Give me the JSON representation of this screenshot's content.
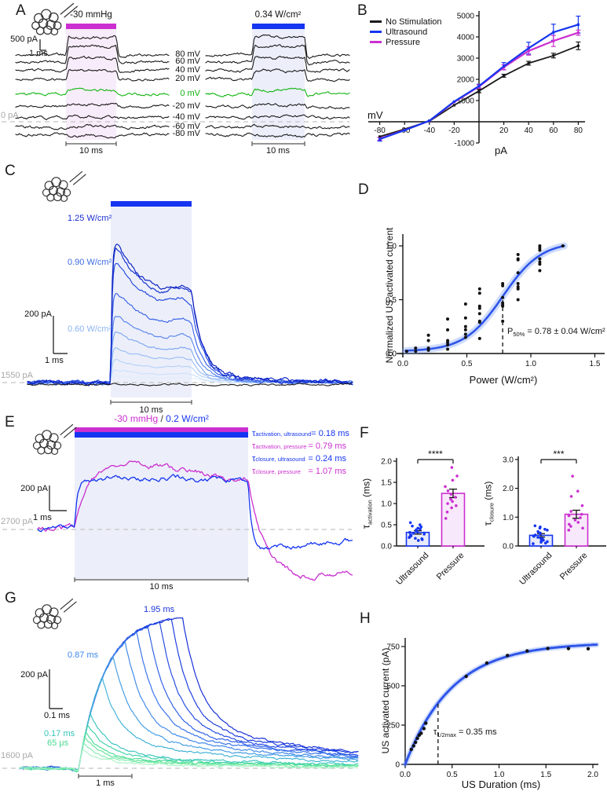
{
  "colors": {
    "blue": "#1635f0",
    "magenta": "#cb2fd0",
    "green": "#11b511",
    "black": "#1a1a1a",
    "gray_label": "#a8a8a8",
    "dash_line": "#c4c4c4",
    "shade_pressure": "#f7ecf9",
    "shade_ultrasound": "#eceffa",
    "fit_blue": "#2f55e8",
    "band_blue": "rgba(110,150,245,0.33)"
  },
  "panels": {
    "A": {
      "letter": "A",
      "left_stim_label": "-30 mmHg",
      "right_stim_label": "0.34 W/cm²",
      "voltage_labels": [
        "80 mV",
        "60 mV",
        "40 mV",
        "20 mV",
        "0 mV",
        "-20 mV",
        "-40 mV",
        "-60 mV",
        "-80 mV"
      ],
      "scale_current": "500 pA",
      "scale_time": "1 ms",
      "baseline_label": "0 pA",
      "time_label_left": "10 ms",
      "time_label_right": "10 ms"
    },
    "B": {
      "letter": "B",
      "x_axis_label": "mV",
      "y_axis_label": "pA"
    },
    "C": {
      "letter": "C",
      "power_labels": [
        {
          "text": "1.25 W/cm²",
          "color": "#1a2fd0"
        },
        {
          "text": "0.90 W/cm²",
          "color": "#3f6ae4"
        },
        {
          "text": "0.60 W/cm²",
          "color": "#8ab4f2"
        }
      ],
      "scale_current": "200 pA",
      "scale_time": "1 ms",
      "baseline_label": "1550 pA",
      "time_label": "10 ms"
    },
    "D": {
      "letter": "D",
      "y_axis_label": "Normalized US activated current",
      "x_axis_label": "Power (W/cm²)",
      "annotation": {
        "sym": "P",
        "sub": "50%",
        "val": " = 0.78 ± 0.04 W/cm²"
      }
    },
    "E": {
      "letter": "E",
      "title": {
        "pressure": "-30 mmHg",
        "sep": " / ",
        "ultrasound": "0.2 W/cm²"
      },
      "tau_annotations": [
        {
          "sym": "τ",
          "sub": "activation, ultrasound",
          "val": "= 0.18 ms",
          "color": "#1635f0"
        },
        {
          "sym": "τ",
          "sub": "activation, pressure",
          "val": "= 0.79 ms",
          "color": "#cb2fd0"
        },
        {
          "sym": "τ",
          "sub": "closure, ultrasound",
          "val": "= 0.24 ms",
          "color": "#1635f0"
        },
        {
          "sym": "τ",
          "sub": "closure, pressure",
          "val": "= 1.07 ms",
          "color": "#cb2fd0"
        }
      ],
      "scale_current": "200 pA",
      "scale_time": "1 ms",
      "baseline_label": "2700 pA",
      "time_label": "10 ms"
    },
    "F": {
      "letter": "F",
      "left_ylabel": {
        "sym": "τ",
        "sub": "activation",
        "unit": " (ms)"
      },
      "right_ylabel": {
        "sym": "τ",
        "sub": "closure",
        "unit": " (ms)"
      }
    },
    "G": {
      "letter": "G",
      "duration_labels": [
        {
          "text": "1.95 ms",
          "color": "#1a34d8"
        },
        {
          "text": "0.87 ms",
          "color": "#3d87ea"
        },
        {
          "text": "0.17 ms",
          "color": "#33c4b8"
        },
        {
          "text": "65 μs",
          "color": "#46d88e"
        }
      ],
      "scale_current": "200 pA",
      "scale_time": "0.1 ms",
      "baseline_label": "1600 pA",
      "time_label": "1 ms"
    },
    "H": {
      "letter": "H",
      "y_axis_label": "US activated current (pA)",
      "x_axis_label": "US Duration (ms)",
      "annotation": {
        "sym": "τ",
        "sub": "1/2max",
        "val": " = 0.35 ms"
      }
    }
  },
  "chart_data": [
    {
      "id": "B",
      "type": "line",
      "xlabel": "mV",
      "ylabel": "pA",
      "x": [
        -80,
        -60,
        -40,
        -20,
        0,
        20,
        40,
        60,
        80
      ],
      "xticks": [
        -80,
        -60,
        -40,
        -20,
        20,
        40,
        60,
        80
      ],
      "yticks": [
        5000,
        4000,
        3000,
        2000,
        1000,
        -1000
      ],
      "xlim": [
        -85,
        85
      ],
      "ylim": [
        -1000,
        5000
      ],
      "legend_position": "top-left",
      "series": [
        {
          "name": "No Stimulation",
          "color": "#1a1a1a",
          "values": [
            -700,
            -350,
            30,
            780,
            1450,
            2170,
            2760,
            3120,
            3580
          ],
          "errors": [
            60,
            50,
            40,
            50,
            80,
            70,
            90,
            110,
            180
          ]
        },
        {
          "name": "Ultrasound",
          "color": "#1635f0",
          "values": [
            -820,
            -400,
            50,
            950,
            1680,
            2620,
            3470,
            4220,
            4580
          ],
          "errors": [
            90,
            60,
            40,
            60,
            90,
            170,
            280,
            380,
            400
          ]
        },
        {
          "name": "Pressure",
          "color": "#cb2fd0",
          "values": [
            -800,
            -390,
            40,
            930,
            1660,
            2570,
            3340,
            3810,
            4200
          ],
          "errors": [
            70,
            50,
            40,
            50,
            80,
            120,
            200,
            260,
            120
          ]
        }
      ]
    },
    {
      "id": "D",
      "type": "scatter",
      "xlabel": "Power (W/cm²)",
      "ylabel": "Normalized US activated current",
      "xticks": [
        0,
        0.5,
        1,
        1.5
      ],
      "yticks": [
        0,
        0.5,
        1
      ],
      "xlim": [
        0,
        1.6
      ],
      "ylim": [
        0,
        1.1
      ],
      "fit": {
        "type": "sigmoid",
        "p50": 0.78,
        "p50_err": 0.04,
        "slope": 0.15,
        "ymin": 0.02,
        "amplitude": 1.02
      },
      "dash_x": 0.78,
      "points": [
        [
          0.03,
          0.02
        ],
        [
          0.1,
          0.02
        ],
        [
          0.1,
          0.05
        ],
        [
          0.2,
          0.03
        ],
        [
          0.2,
          0.05
        ],
        [
          0.2,
          0.12
        ],
        [
          0.2,
          0.17
        ],
        [
          0.35,
          0.04
        ],
        [
          0.35,
          0.08
        ],
        [
          0.35,
          0.1
        ],
        [
          0.35,
          0.12
        ],
        [
          0.35,
          0.22
        ],
        [
          0.35,
          0.32
        ],
        [
          0.49,
          0.15
        ],
        [
          0.49,
          0.18
        ],
        [
          0.49,
          0.22
        ],
        [
          0.49,
          0.25
        ],
        [
          0.49,
          0.33
        ],
        [
          0.49,
          0.46
        ],
        [
          0.6,
          0.14
        ],
        [
          0.6,
          0.29
        ],
        [
          0.6,
          0.3
        ],
        [
          0.6,
          0.37
        ],
        [
          0.6,
          0.42
        ],
        [
          0.6,
          0.44
        ],
        [
          0.6,
          0.56
        ],
        [
          0.6,
          0.6
        ],
        [
          0.78,
          0.3
        ],
        [
          0.78,
          0.44
        ],
        [
          0.78,
          0.45
        ],
        [
          0.78,
          0.47
        ],
        [
          0.78,
          0.52
        ],
        [
          0.78,
          0.63
        ],
        [
          0.78,
          0.65
        ],
        [
          0.9,
          0.5
        ],
        [
          0.9,
          0.6
        ],
        [
          0.9,
          0.62
        ],
        [
          0.9,
          0.65
        ],
        [
          0.9,
          0.75
        ],
        [
          0.9,
          0.87
        ],
        [
          0.9,
          0.88
        ],
        [
          0.9,
          0.92
        ],
        [
          1.07,
          0.77
        ],
        [
          1.07,
          0.83
        ],
        [
          1.07,
          0.85
        ],
        [
          1.07,
          0.88
        ],
        [
          1.07,
          0.96
        ],
        [
          1.07,
          0.98
        ],
        [
          1.07,
          1.0
        ],
        [
          1.25,
          1.0
        ]
      ]
    },
    {
      "id": "F1",
      "type": "bar",
      "ylabel": "τ activation (ms)",
      "categories": [
        "Ultrasound",
        "Pressure"
      ],
      "values": [
        0.32,
        1.24
      ],
      "errors": [
        0.04,
        0.1
      ],
      "yticks": [
        0,
        0.5,
        1,
        1.5,
        2
      ],
      "significance": "****",
      "bar_colors": [
        "#1635f0",
        "#cb2fd0"
      ],
      "bar_fills": [
        "#e7ebfa",
        "#f8e8fb"
      ],
      "points": [
        [
          0.13,
          0.15,
          0.17,
          0.18,
          0.2,
          0.22,
          0.24,
          0.26,
          0.28,
          0.3,
          0.32,
          0.33,
          0.35,
          0.38,
          0.4,
          0.42,
          0.45,
          0.47,
          0.5,
          0.55
        ],
        [
          0.65,
          0.8,
          0.9,
          0.95,
          1.0,
          1.05,
          1.1,
          1.15,
          1.22,
          1.3,
          1.4,
          1.55,
          1.65,
          1.85
        ]
      ]
    },
    {
      "id": "F2",
      "type": "bar",
      "ylabel": "τ closure (ms)",
      "categories": [
        "Ultrasound",
        "Pressure"
      ],
      "values": [
        0.37,
        1.1
      ],
      "errors": [
        0.06,
        0.14
      ],
      "yticks": [
        0,
        1,
        2,
        3
      ],
      "significance": "***",
      "bar_colors": [
        "#1635f0",
        "#cb2fd0"
      ],
      "bar_fills": [
        "#e7ebfa",
        "#f8e8fb"
      ],
      "points": [
        [
          0.08,
          0.1,
          0.13,
          0.15,
          0.18,
          0.2,
          0.24,
          0.27,
          0.3,
          0.33,
          0.35,
          0.38,
          0.42,
          0.45,
          0.5,
          0.55,
          0.58,
          0.62,
          0.66,
          0.7
        ],
        [
          0.55,
          0.62,
          0.68,
          0.75,
          0.82,
          0.9,
          0.98,
          1.05,
          1.1,
          1.2,
          1.4,
          1.72,
          1.9,
          2.42
        ]
      ]
    },
    {
      "id": "H",
      "type": "scatter",
      "xlabel": "US Duration (ms)",
      "ylabel": "US activated current (pA)",
      "xticks": [
        0,
        0.5,
        1,
        1.5,
        2
      ],
      "yticks": [
        0,
        250,
        500,
        750
      ],
      "xlim": [
        0,
        2.05
      ],
      "ylim": [
        0,
        800
      ],
      "fit": {
        "type": "exponential_saturation",
        "amplitude": 775,
        "tau": 0.5
      },
      "dash_x": 0.35,
      "points": [
        [
          0.065,
          95
        ],
        [
          0.09,
          118
        ],
        [
          0.11,
          140
        ],
        [
          0.13,
          166
        ],
        [
          0.15,
          186
        ],
        [
          0.17,
          198
        ],
        [
          0.2,
          228
        ],
        [
          0.22,
          262
        ],
        [
          0.65,
          560
        ],
        [
          0.87,
          645
        ],
        [
          1.09,
          693
        ],
        [
          1.3,
          722
        ],
        [
          1.52,
          738
        ],
        [
          1.74,
          737
        ],
        [
          1.95,
          736
        ]
      ]
    },
    {
      "id": "A_traces",
      "type": "trace-family",
      "description": "Voltage-clamp currents at holding potentials 80 to -80 mV during pressure (-30 mmHg, left) or ultrasound (0.34 W/cm², right) stimulus",
      "voltages_mV": [
        80,
        60,
        40,
        20,
        0,
        -20,
        -40,
        -60,
        -80
      ],
      "relative_response": [
        1,
        0.87,
        0.7,
        0.48,
        0.24,
        0.13,
        0.07,
        0.04,
        -0.09
      ],
      "stimulus_duration_label": "10 ms"
    },
    {
      "id": "C_traces",
      "type": "trace-family",
      "description": "US-activated currents at increasing acoustic power (black = no stimulus baseline)",
      "peaks_norm": [
        1,
        0.97,
        0.86,
        0.65,
        0.49,
        0.36,
        0.25,
        0.16,
        0.09,
        0.05
      ],
      "colors": [
        "#0a1ec0",
        "#1530d0",
        "#2448e0",
        "#3a63e8",
        "#5b85ec",
        "#7da6f0",
        "#9bbef4",
        "#b6d2f8",
        "#cde1fa",
        "#e0edfc"
      ]
    },
    {
      "id": "E_traces",
      "type": "trace-family",
      "description": "Overlaid currents elicited by -30 mmHg pressure and 0.2 W/cm² ultrasound",
      "traces": [
        {
          "name": "ultrasound",
          "color": "#1635f0",
          "tau_activation_ms": 0.18,
          "tau_closure_ms": 0.24,
          "plateau_norm": 0.75,
          "undershoot_norm": 0.38
        },
        {
          "name": "pressure",
          "color": "#cb2fd0",
          "tau_activation_ms": 0.79,
          "tau_closure_ms": 1.07,
          "plateau_norm": 1.0,
          "undershoot_norm": 0.9
        }
      ]
    },
    {
      "id": "G_traces",
      "type": "trace-family",
      "description": "US-activated currents for increasing US durations",
      "durations_ms": [
        1.95,
        1.74,
        1.52,
        1.3,
        1.09,
        0.87,
        0.65,
        0.44,
        0.22,
        0.17,
        0.13,
        0.11,
        0.09,
        0.065
      ],
      "colors": [
        "#1029d6",
        "#1838de",
        "#2048e2",
        "#2b5ce6",
        "#3470ea",
        "#3d87ea",
        "#419ce4",
        "#3fb2d6",
        "#3bc4c0",
        "#3cd2a8",
        "#4adc96",
        "#63e49a",
        "#86ecb0",
        "#aef2c8"
      ]
    }
  ]
}
